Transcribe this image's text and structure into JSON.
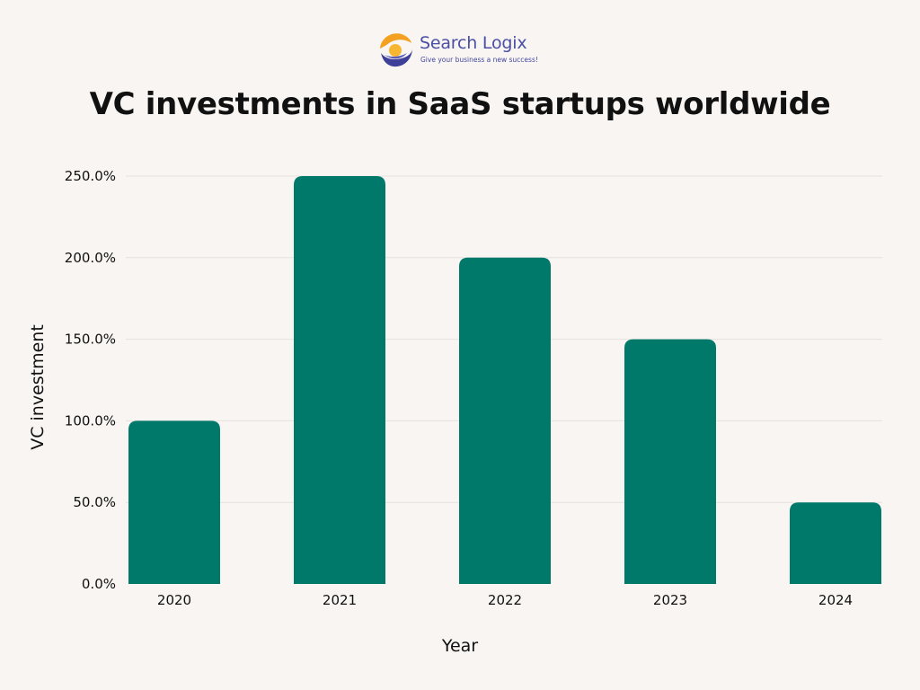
{
  "brand": {
    "name": "Search Logix",
    "tagline": "Give your business a new success!"
  },
  "colors": {
    "background": "#f8f5f2",
    "bar": "#01796a",
    "brand_text": "#4b4fa3",
    "logo_orange": "#f4a020",
    "logo_blue": "#3e3f98"
  },
  "chart_data": {
    "type": "bar",
    "title": "VC investments in SaaS startups worldwide",
    "xlabel": "Year",
    "ylabel": "VC investment",
    "categories": [
      "2020",
      "2021",
      "2022",
      "2023",
      "2024"
    ],
    "values": [
      100,
      250,
      200,
      150,
      50
    ],
    "value_unit": "%",
    "ylim": [
      0,
      250
    ],
    "yticks": [
      0,
      50,
      100,
      150,
      200,
      250
    ],
    "ytick_labels": [
      "0.0%",
      "50.0%",
      "100.0%",
      "150.0%",
      "200.0%",
      "250.0%"
    ],
    "grid": true,
    "legend": "none"
  }
}
